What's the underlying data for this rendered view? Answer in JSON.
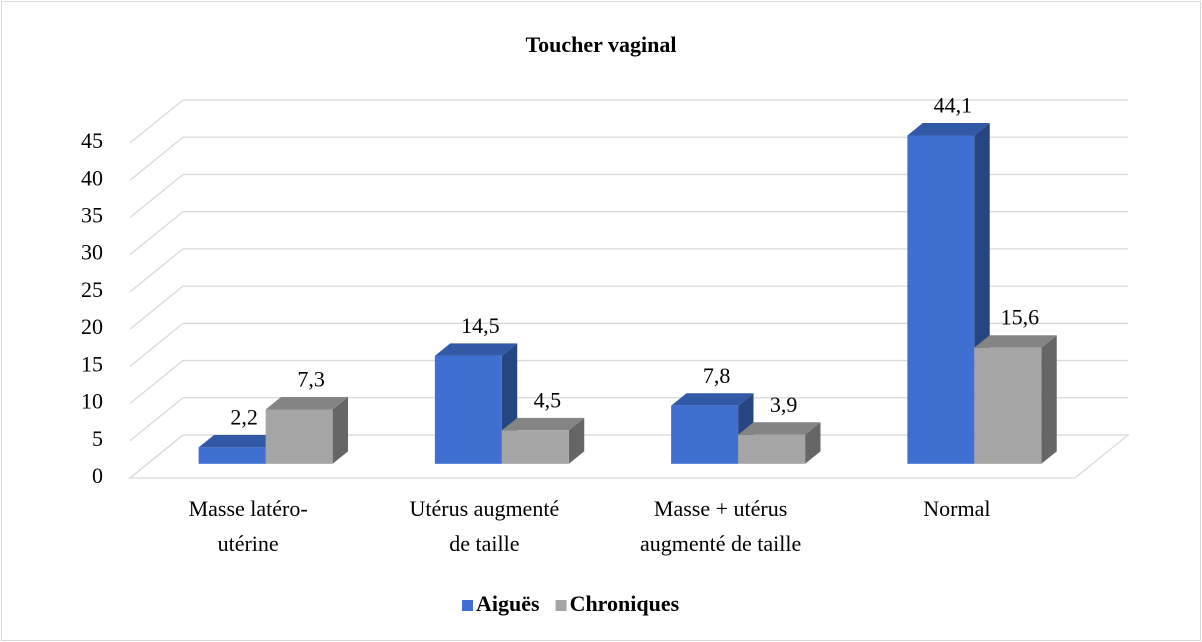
{
  "chart_data": {
    "type": "bar3d",
    "title": "Toucher vaginal",
    "categories": [
      "Masse latéro-\nutérine",
      "Utérus augmenté\nde taille",
      "Masse + utérus\naugmenté de taille",
      "Normal"
    ],
    "series": [
      {
        "name": "Aiguës",
        "color": "#3f6fd0",
        "values": [
          2.2,
          14.5,
          7.8,
          44.1
        ],
        "value_labels": [
          "2,2",
          "14,5",
          "7,8",
          "44,1"
        ]
      },
      {
        "name": "Chroniques",
        "color": "#a5a5a5",
        "values": [
          7.3,
          4.5,
          3.9,
          15.6
        ],
        "value_labels": [
          "7,3",
          "4,5",
          "3,9",
          "15,6"
        ]
      }
    ],
    "ylim": [
      0,
      45
    ],
    "yticks": [
      0,
      5,
      10,
      15,
      20,
      25,
      30,
      35,
      40,
      45
    ],
    "grid": true,
    "legend": "bottom"
  }
}
